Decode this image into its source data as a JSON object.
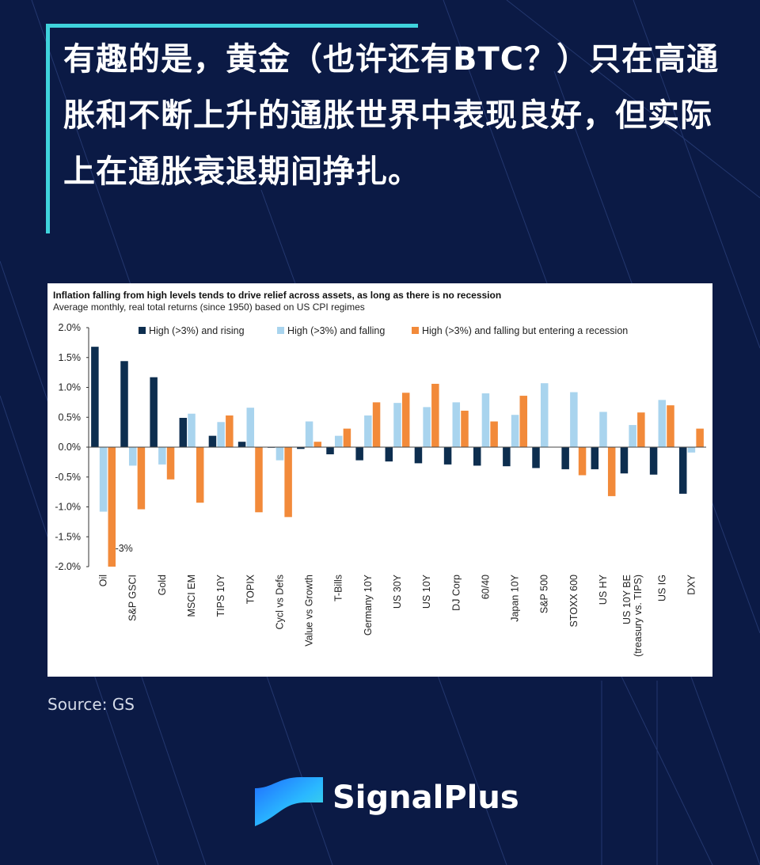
{
  "headline": "有趣的是，黄金（也许还有BTC？）只在高通胀和不断上升的通胀世界中表现良好，但实际上在通胀衰退期间挣扎。",
  "source": "Source: GS",
  "brand": {
    "name": "SignalPlus",
    "icon": "signalplus-logo-icon"
  },
  "colors": {
    "background": "#0b1a45",
    "accent": "#3fd3dc",
    "rising": "#0d2e4f",
    "falling": "#a9d4ee",
    "recession": "#f28a3a"
  },
  "chart_data": {
    "type": "bar",
    "title": "Inflation falling from high levels tends to drive relief across assets, as long as there is no recession",
    "subtitle": "Average monthly, real total returns (since 1950) based on US CPI regimes",
    "categories": [
      "Oil",
      "S&P GSCI",
      "Gold",
      "MSCI EM",
      "TIPS 10Y",
      "TOPIX",
      "Cycl vs Defs",
      "Value vs Growth",
      "T-Bills",
      "Germany 10Y",
      "US 30Y",
      "US 10Y",
      "DJ Corp",
      "60/40",
      "Japan 10Y",
      "S&P 500",
      "STOXX 600",
      "US HY",
      "US 10Y BE (treasury vs. TIPS)",
      "US IG",
      "DXY"
    ],
    "series": [
      {
        "name": "High (>3%) and rising",
        "color": "#0d2e4f",
        "values": [
          1.68,
          1.44,
          1.17,
          0.49,
          0.19,
          0.09,
          0.0,
          -0.03,
          -0.12,
          -0.22,
          -0.24,
          -0.27,
          -0.29,
          -0.31,
          -0.32,
          -0.35,
          -0.37,
          -0.37,
          -0.44,
          -0.46,
          -0.78
        ]
      },
      {
        "name": "High (>3%) and falling",
        "color": "#a9d4ee",
        "values": [
          -1.08,
          -0.31,
          -0.29,
          0.56,
          0.42,
          0.66,
          -0.22,
          0.43,
          0.19,
          0.53,
          0.74,
          0.67,
          0.75,
          0.9,
          0.54,
          1.07,
          0.92,
          0.59,
          0.37,
          0.79,
          -0.09
        ]
      },
      {
        "name": "High (>3%) and falling but entering a recession",
        "color": "#f28a3a",
        "values": [
          -2.0,
          -1.04,
          -0.54,
          -0.93,
          0.53,
          -1.09,
          -1.17,
          0.09,
          0.31,
          0.75,
          0.91,
          1.06,
          0.61,
          0.43,
          0.86,
          null,
          -0.47,
          -0.82,
          0.58,
          0.7,
          0.31
        ]
      }
    ],
    "yticks": [
      "2.0%",
      "1.5%",
      "1.0%",
      "0.5%",
      "0.0%",
      "-0.5%",
      "-1.0%",
      "-1.5%",
      "-2.0%"
    ],
    "ylim": [
      -2.0,
      2.0
    ],
    "annotation": {
      "text": "-3%",
      "category": "Oil"
    },
    "legend": "top",
    "grid": false
  }
}
